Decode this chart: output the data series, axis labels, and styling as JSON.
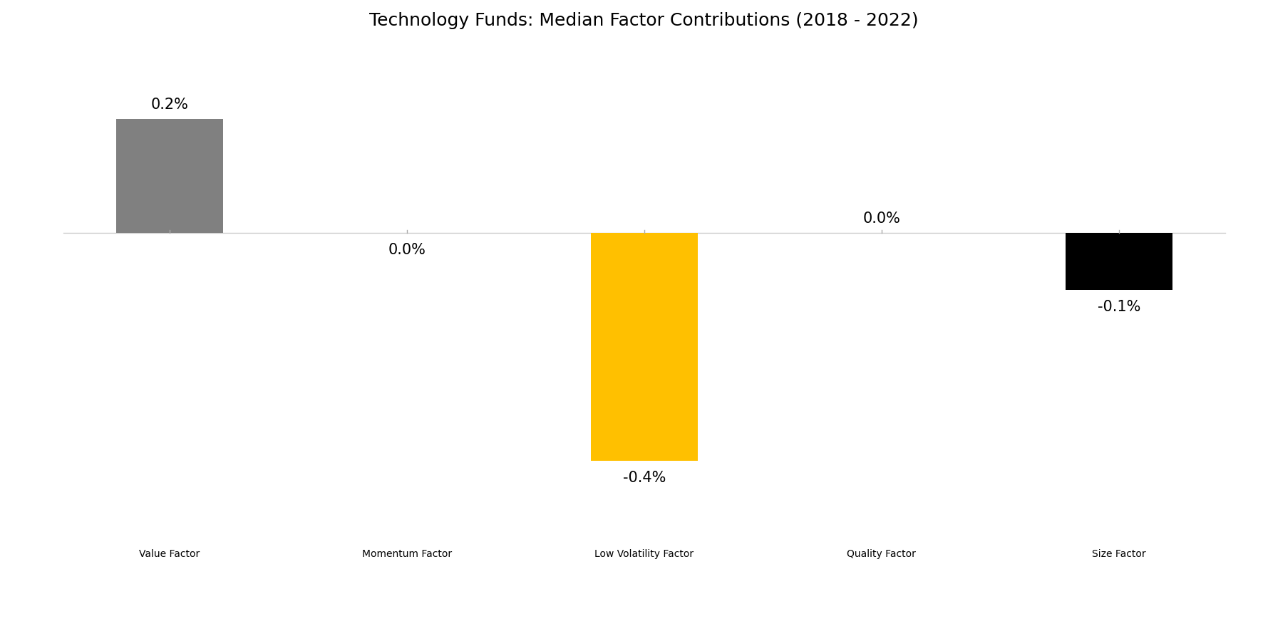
{
  "title": "Technology Funds: Median Factor Contributions (2018 - 2022)",
  "categories": [
    "Value Factor",
    "Momentum Factor",
    "Low Volatility Factor",
    "Quality Factor",
    "Size Factor"
  ],
  "values": [
    0.2,
    0.0,
    -0.4,
    0.0,
    -0.1
  ],
  "bar_colors": [
    "#808080",
    "#1EB0E0",
    "#FFC000",
    "#9B59B6",
    "#000000"
  ],
  "labels": [
    "0.2%",
    "0.0%",
    "-0.4%",
    "0.0%",
    "-0.1%"
  ],
  "ylim": [
    -0.5,
    0.32
  ],
  "title_fontsize": 18,
  "tick_fontsize": 15,
  "label_fontsize": 15,
  "bar_width": 0.45,
  "background_color": "#ffffff"
}
